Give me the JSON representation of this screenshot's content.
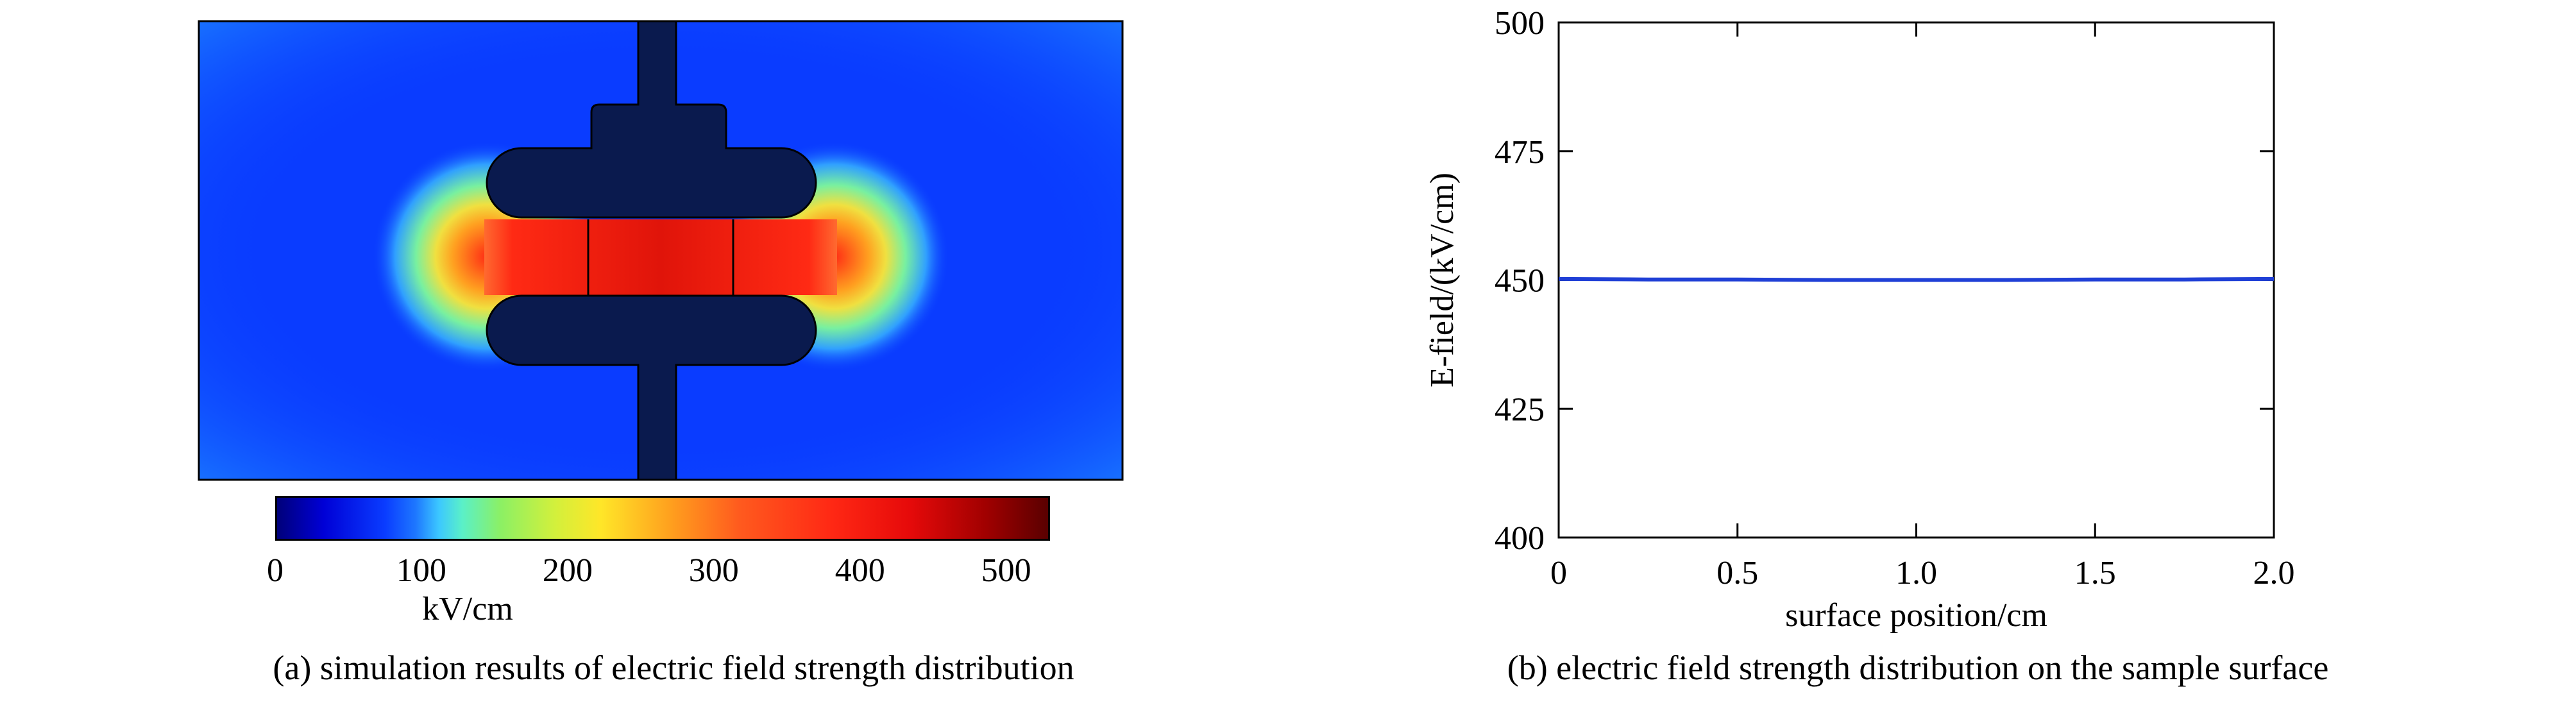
{
  "panel_a": {
    "caption": "(a) simulation results of electric field strength distribution",
    "colorbar": {
      "ticks": [
        "0",
        "100",
        "200",
        "300",
        "400",
        "500"
      ],
      "tick_values": [
        0,
        100,
        200,
        300,
        400,
        500
      ],
      "range": [
        0,
        530
      ],
      "unit": "kV/cm"
    }
  },
  "panel_b": {
    "caption": "(b) electric field strength distribution on the sample surface"
  },
  "chart_data": {
    "type": "line",
    "xlabel": "surface position/cm",
    "ylabel": "E-field/(kV/cm)",
    "xlim": [
      0,
      2.0
    ],
    "ylim": [
      400,
      500
    ],
    "xticks": [
      "0",
      "0.5",
      "1.0",
      "1.5",
      "2.0"
    ],
    "xtick_values": [
      0,
      0.5,
      1.0,
      1.5,
      2.0
    ],
    "yticks": [
      "400",
      "425",
      "450",
      "475",
      "500"
    ],
    "ytick_values": [
      400,
      425,
      450,
      475,
      500
    ],
    "series": [
      {
        "color": "#1f3fd6",
        "x": [
          0,
          0.25,
          0.5,
          0.75,
          1.0,
          1.25,
          1.5,
          1.75,
          2.0
        ],
        "y": [
          450.2,
          450.1,
          450.1,
          450.0,
          450.0,
          450.0,
          450.1,
          450.1,
          450.2
        ]
      }
    ]
  }
}
